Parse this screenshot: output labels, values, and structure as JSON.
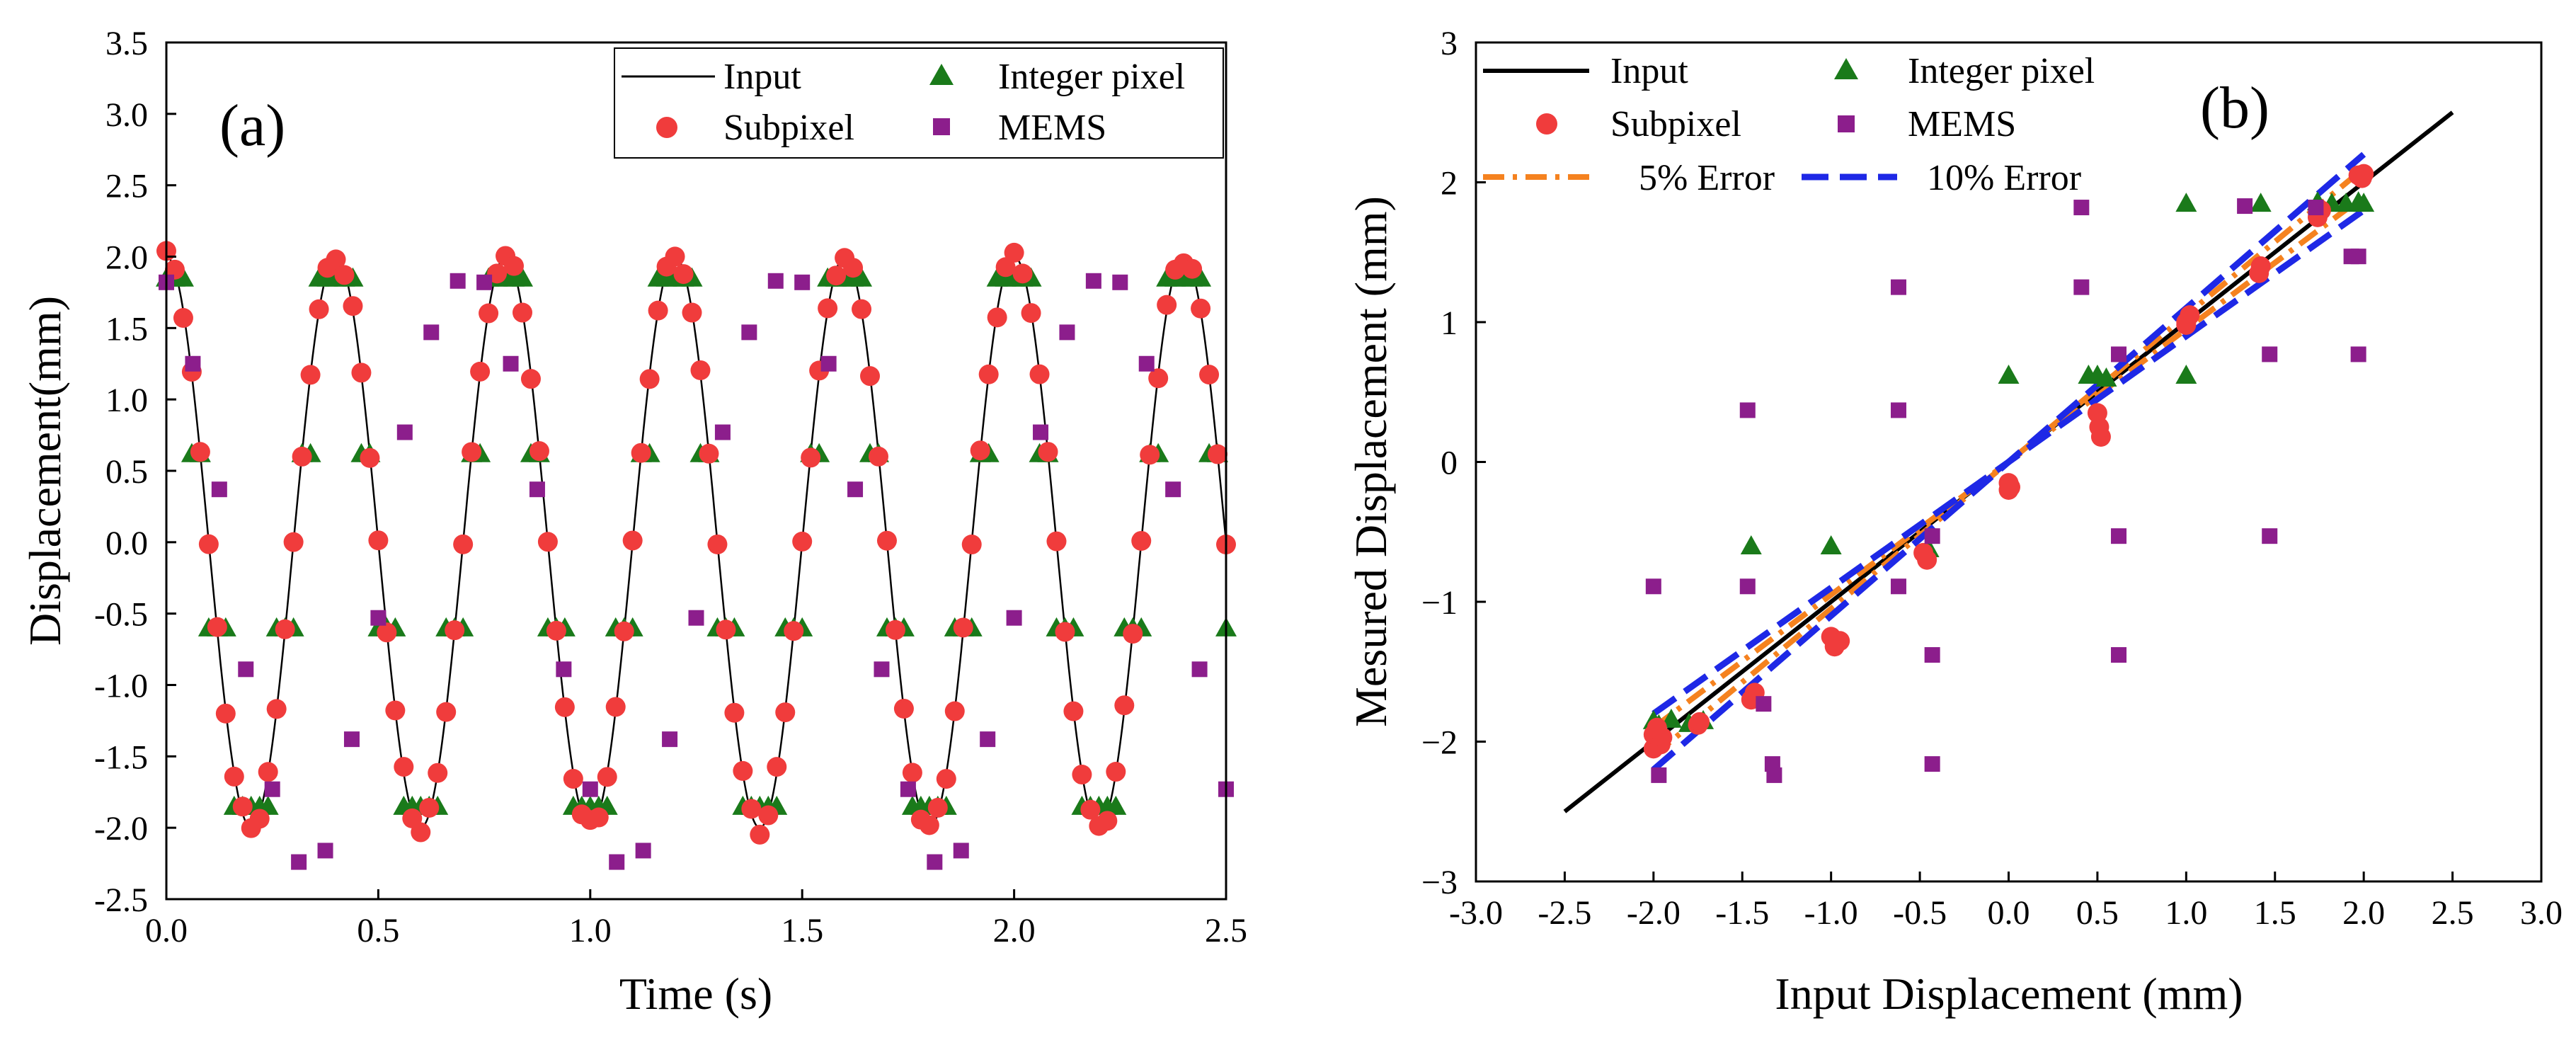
{
  "colors": {
    "input": "#000000",
    "subpixel": "#f03c3c",
    "integer": "#1a7a1a",
    "mems": "#8c1e8c",
    "err5": "#f5821f",
    "err10": "#1e28e6"
  },
  "chart_data": [
    {
      "type": "scatter",
      "panel_label": "(a)",
      "xlabel": "Time (s)",
      "ylabel": "Displacement(mm)",
      "xlim": [
        0,
        2.5
      ],
      "ylim": [
        -2.5,
        3.5
      ],
      "xticks": [
        0,
        0.5,
        1,
        1.5,
        2,
        2.5
      ],
      "xtick_labels": [
        "0.0",
        "0.5",
        "1.0",
        "1.5",
        "2.0",
        "2.5"
      ],
      "yticks": [
        -2.5,
        -2,
        -1.5,
        -1,
        -0.5,
        0,
        0.5,
        1,
        1.5,
        2,
        2.5,
        3,
        3.5
      ],
      "ytick_labels": [
        "-2.5",
        "-2.0",
        "-1.5",
        "-1.0",
        "-0.5",
        "0.0",
        "0.5",
        "1.0",
        "1.5",
        "2.0",
        "2.5",
        "3.0",
        "3.5"
      ],
      "legend": {
        "placement": "top-right",
        "entries": [
          "Input",
          "Integer pixel",
          "Subpixel",
          "MEMS"
        ]
      },
      "series": [
        {
          "name": "Input",
          "kind": "line",
          "function": "2*cos(2*pi*2.5*t)",
          "amplitude_mm": 2,
          "frequency_hz": 2.5,
          "t_range": [
            0,
            2.5
          ]
        },
        {
          "name": "Integer pixel",
          "kind": "marker",
          "marker": "triangle",
          "quantized_levels": [
            -1.85,
            -0.6,
            0.62,
            1.85
          ],
          "sample_interval_s": 0.02
        },
        {
          "name": "Subpixel",
          "kind": "marker",
          "marker": "circle",
          "sample_interval_s": 0.02,
          "phase_jitter": 0.04
        },
        {
          "name": "MEMS",
          "kind": "marker",
          "marker": "square",
          "sample_interval_s": 0.0625,
          "values": [
            1.82,
            1.25,
            0.37,
            -0.89,
            -1.73,
            -2.24,
            -2.16,
            -1.38,
            -0.53,
            0.77,
            1.47,
            1.83,
            1.82,
            1.25,
            0.37,
            -0.89,
            -1.73,
            -2.24,
            -2.16,
            -1.38,
            -0.53,
            0.77,
            1.47,
            1.83,
            1.82,
            1.25,
            0.37,
            -0.89,
            -1.73,
            -2.24,
            -2.16,
            -1.38,
            -0.53,
            0.77,
            1.47,
            1.83,
            1.82,
            1.25,
            0.37,
            -0.89,
            -1.73
          ]
        }
      ]
    },
    {
      "type": "scatter",
      "panel_label": "(b)",
      "xlabel": "Input Displacement (mm)",
      "ylabel": "Mesured Displacement (mm)",
      "xlim": [
        -3,
        3
      ],
      "ylim": [
        -3,
        3
      ],
      "xticks": [
        -3,
        -2.5,
        -2,
        -1.5,
        -1,
        -0.5,
        0,
        0.5,
        1,
        1.5,
        2,
        2.5,
        3
      ],
      "xtick_labels": [
        "-3.0",
        "-2.5",
        "-2.0",
        "-1.5",
        "-1.0",
        "-0.5",
        "0.0",
        "0.5",
        "1.0",
        "1.5",
        "2.0",
        "2.5",
        "3.0"
      ],
      "yticks": [
        -3,
        -2,
        -1,
        0,
        1,
        2,
        3
      ],
      "ytick_labels": [
        "−3",
        "−2",
        "−1",
        "0",
        "1",
        "2",
        "3"
      ],
      "legend": {
        "placement": "top-left",
        "entries": [
          "Input",
          "Integer pixel",
          "Subpixel",
          "MEMS",
          "5% Error",
          "10% Error"
        ]
      },
      "series": [
        {
          "name": "Input",
          "kind": "line",
          "x": [
            -2.5,
            2.5
          ],
          "y": [
            -2.5,
            2.5
          ]
        },
        {
          "name": "5% Error",
          "kind": "dashdot",
          "x_range": [
            -2,
            2
          ],
          "slopes": [
            0.95,
            1.05
          ]
        },
        {
          "name": "10% Error",
          "kind": "dashed",
          "x_range": [
            -2,
            2
          ],
          "slopes": [
            0.9,
            1.1
          ]
        },
        {
          "name": "Integer pixel",
          "kind": "marker",
          "marker": "triangle",
          "points": [
            [
              -2,
              -1.85
            ],
            [
              -1.97,
              -1.88
            ],
            [
              -1.9,
              -1.84
            ],
            [
              -1.8,
              -1.87
            ],
            [
              -1.72,
              -1.85
            ],
            [
              -1.45,
              -0.6
            ],
            [
              -1.0,
              -0.6
            ],
            [
              -0.45,
              -0.62
            ],
            [
              0,
              0.62
            ],
            [
              0.45,
              0.62
            ],
            [
              0.5,
              0.62
            ],
            [
              0.55,
              0.6
            ],
            [
              1,
              1.85
            ],
            [
              1,
              0.62
            ],
            [
              1.42,
              1.85
            ],
            [
              1.74,
              1.86
            ],
            [
              1.82,
              1.85
            ],
            [
              1.9,
              1.85
            ],
            [
              1.97,
              1.86
            ],
            [
              2,
              1.85
            ]
          ]
        },
        {
          "name": "Subpixel",
          "kind": "marker",
          "marker": "circle",
          "points": [
            [
              -2,
              -2.05
            ],
            [
              -2,
              -1.95
            ],
            [
              -1.98,
              -1.9
            ],
            [
              -1.96,
              -2.02
            ],
            [
              -1.95,
              -1.97
            ],
            [
              -1.75,
              -1.88
            ],
            [
              -1.74,
              -1.86
            ],
            [
              -1.45,
              -1.7
            ],
            [
              -1.43,
              -1.65
            ],
            [
              -1.0,
              -1.25
            ],
            [
              -0.98,
              -1.32
            ],
            [
              -0.95,
              -1.28
            ],
            [
              -0.48,
              -0.65
            ],
            [
              -0.46,
              -0.7
            ],
            [
              0,
              -0.15
            ],
            [
              0,
              -0.2
            ],
            [
              0.01,
              -0.18
            ],
            [
              0.5,
              0.35
            ],
            [
              0.51,
              0.25
            ],
            [
              0.52,
              0.18
            ],
            [
              1.0,
              0.98
            ],
            [
              1.0,
              1.0
            ],
            [
              1.02,
              1.05
            ],
            [
              1.41,
              1.35
            ],
            [
              1.42,
              1.4
            ],
            [
              1.74,
              1.75
            ],
            [
              1.76,
              1.8
            ],
            [
              1.97,
              2.05
            ],
            [
              1.99,
              2.03
            ],
            [
              2,
              2.06
            ]
          ]
        },
        {
          "name": "MEMS",
          "kind": "marker",
          "marker": "square",
          "points": [
            [
              -2,
              -0.89
            ],
            [
              -1.97,
              -2.24
            ],
            [
              -1.47,
              0.37
            ],
            [
              -1.47,
              -0.89
            ],
            [
              -1.38,
              -1.73
            ],
            [
              -1.33,
              -2.16
            ],
            [
              -1.32,
              -2.24
            ],
            [
              -0.62,
              1.25
            ],
            [
              -0.62,
              0.37
            ],
            [
              -0.62,
              -0.89
            ],
            [
              -0.43,
              -0.53
            ],
            [
              -0.43,
              -1.38
            ],
            [
              -0.43,
              -2.16
            ],
            [
              0.41,
              1.82
            ],
            [
              0.41,
              1.25
            ],
            [
              0.62,
              0.77
            ],
            [
              0.62,
              -0.53
            ],
            [
              0.62,
              -1.38
            ],
            [
              1.33,
              1.83
            ],
            [
              1.47,
              0.77
            ],
            [
              1.47,
              -0.53
            ],
            [
              1.73,
              1.82
            ],
            [
              1.97,
              1.47
            ],
            [
              1.93,
              1.47
            ],
            [
              1.97,
              0.77
            ]
          ]
        }
      ]
    }
  ]
}
